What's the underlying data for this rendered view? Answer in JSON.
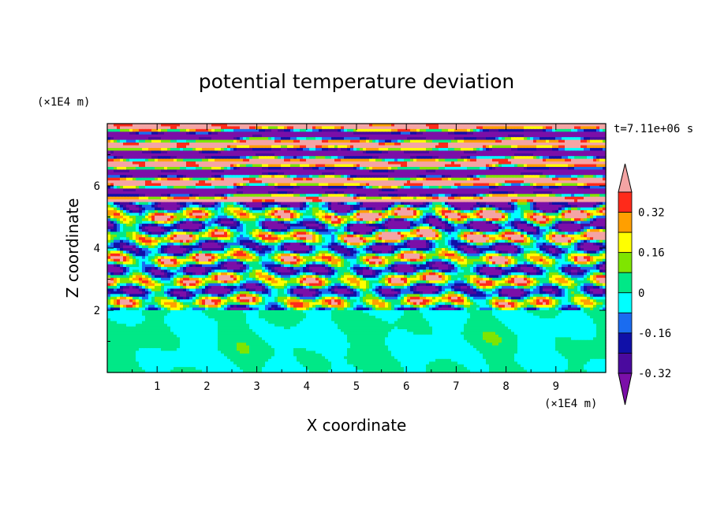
{
  "chart_data": {
    "type": "heatmap",
    "title": "potential temperature deviation",
    "xlabel": "X coordinate",
    "ylabel": "Z coordinate",
    "x_unit": "(×1E4 m)",
    "y_unit": "(×1E4 m)",
    "time_label": "t=7.11e+06 s",
    "xlim": [
      0,
      10
    ],
    "ylim": [
      0,
      8
    ],
    "x_ticks": [
      "1",
      "2",
      "3",
      "4",
      "5",
      "6",
      "7",
      "8",
      "9"
    ],
    "y_ticks": [
      "2",
      "4",
      "6"
    ],
    "colorbar": {
      "labels": [
        "0.32",
        "0.16",
        "0",
        "-0.16",
        "-0.32"
      ],
      "levels": [
        -0.4,
        -0.32,
        -0.24,
        -0.16,
        -0.08,
        0,
        0.08,
        0.16,
        0.24,
        0.32,
        0.4
      ],
      "colors": [
        "#7b0fa8",
        "#4a0a9e",
        "#1010a8",
        "#1a6cf0",
        "#00ffff",
        "#00e887",
        "#7fe500",
        "#ffff00",
        "#ff9f00",
        "#ff2a1a",
        "#f4a4a4"
      ],
      "extend": "both"
    },
    "layers": [
      {
        "z_range": [
          0,
          2
        ],
        "description_values": "near 0 (-0.08 to 0.08)"
      },
      {
        "z_range": [
          2,
          5.5
        ],
        "description_values": "mixed -0.4 to 0.4"
      },
      {
        "z_range": [
          5.5,
          8
        ],
        "description_values": "alternating bands of -0.4 and 0.4"
      }
    ]
  }
}
